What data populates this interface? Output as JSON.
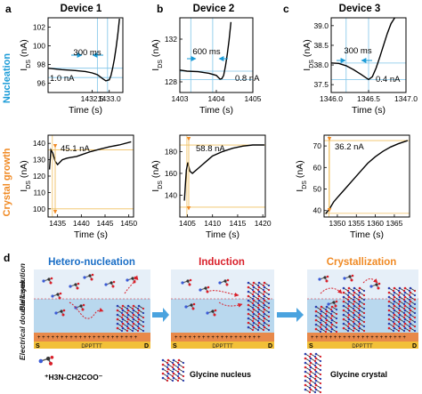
{
  "panels": {
    "a": "a",
    "b": "b",
    "c": "c",
    "d": "d",
    "titles": [
      "Device 1",
      "Device 2",
      "Device 3"
    ]
  },
  "row_labels": {
    "top": "Nucleation",
    "bottom": "Crystal growth"
  },
  "colors": {
    "nucleation": "#1a9bd7",
    "growth": "#f08a24",
    "stage_blue": "#1a6ec6",
    "stage_red": "#d9202a",
    "stage_orange": "#f08a24",
    "bulk": "#dfeaf5",
    "edl": "#b5d5ec",
    "substrate": "#e8894a",
    "electrode": "#f2c038"
  },
  "chart_data": [
    {
      "id": "a_top",
      "type": "line",
      "ylabel": "I_DS (nA)",
      "xlabel": "Time (s)",
      "xlim": [
        1431.2,
        1433.4
      ],
      "ylim": [
        95,
        103
      ],
      "xticks": [
        "1432.5",
        "1433.0"
      ],
      "yticks": [
        "96",
        "98",
        "100",
        "102"
      ],
      "annotations": [
        "1.0 nA",
        "300 ms"
      ],
      "x": [
        1431.2,
        1431.6,
        1432.0,
        1432.3,
        1432.5,
        1432.65,
        1432.8,
        1432.9,
        1433.0,
        1433.05,
        1433.1,
        1433.15,
        1433.2,
        1433.25,
        1433.3
      ],
      "y": [
        97.6,
        97.45,
        97.35,
        97.25,
        97.1,
        96.9,
        96.5,
        96.25,
        96.35,
        96.8,
        97.6,
        98.6,
        99.8,
        101.2,
        102.9
      ]
    },
    {
      "id": "b_top",
      "type": "line",
      "ylabel": "I_DS (nA)",
      "xlabel": "Time (s)",
      "xlim": [
        1403,
        1405
      ],
      "ylim": [
        127,
        134
      ],
      "xticks": [
        "1403",
        "1404",
        "1405"
      ],
      "yticks": [
        "128",
        "132"
      ],
      "annotations": [
        "600 ms",
        "0.8 nA"
      ],
      "x": [
        1403.0,
        1403.2,
        1403.5,
        1403.8,
        1404.0,
        1404.1,
        1404.15,
        1404.2,
        1404.25,
        1404.3,
        1404.35,
        1404.4
      ],
      "y": [
        129.1,
        129.0,
        128.95,
        128.8,
        128.6,
        128.25,
        128.3,
        128.6,
        129.5,
        130.6,
        131.9,
        133.6
      ]
    },
    {
      "id": "c_top",
      "type": "line",
      "ylabel": "I_DS (nA)",
      "xlabel": "Time (s)",
      "xlim": [
        1346,
        1347
      ],
      "ylim": [
        37.3,
        39.2
      ],
      "xticks": [
        "1346.0",
        "1346.5",
        "1347.0"
      ],
      "yticks": [
        "37.5",
        "38.0",
        "38.5",
        "39.0"
      ],
      "annotations": [
        "300 ms",
        "0.4 nA"
      ],
      "x": [
        1346.0,
        1346.1,
        1346.2,
        1346.3,
        1346.4,
        1346.5,
        1346.55,
        1346.6,
        1346.65,
        1346.7,
        1346.75,
        1346.8,
        1346.85
      ],
      "y": [
        38.05,
        38.04,
        37.98,
        37.88,
        37.76,
        37.63,
        37.7,
        37.92,
        38.2,
        38.5,
        38.8,
        39.05,
        39.2
      ]
    },
    {
      "id": "a_bot",
      "type": "line",
      "ylabel": "I_DS (nA)",
      "xlabel": "Time (s)",
      "xlim": [
        1433,
        1451
      ],
      "ylim": [
        95,
        145
      ],
      "xticks": [
        "1435",
        "1440",
        "1445",
        "1450"
      ],
      "yticks": [
        "100",
        "110",
        "120",
        "130",
        "140"
      ],
      "annotations": [
        "45.1 nA"
      ],
      "x": [
        1433.3,
        1433.6,
        1434.0,
        1434.5,
        1435.0,
        1436.0,
        1437.0,
        1438.0,
        1439.0,
        1440.0,
        1442.0,
        1444.0,
        1446.0,
        1448.0,
        1450.5
      ],
      "y": [
        124,
        136,
        134,
        129,
        127,
        130,
        131,
        131.5,
        132,
        133,
        135,
        136.5,
        138,
        139,
        141
      ]
    },
    {
      "id": "b_bot",
      "type": "line",
      "ylabel": "I_DS (nA)",
      "xlabel": "Time (s)",
      "xlim": [
        1403.5,
        1420.5
      ],
      "ylim": [
        120,
        195
      ],
      "xticks": [
        "1405",
        "1410",
        "1415",
        "1420"
      ],
      "yticks": [
        "140",
        "160",
        "180"
      ],
      "annotations": [
        "58.8 nA"
      ],
      "x": [
        1404.4,
        1404.8,
        1405.1,
        1405.5,
        1406.0,
        1407.0,
        1408.0,
        1409.0,
        1410.0,
        1412.0,
        1414.0,
        1416.0,
        1418.0,
        1420.3
      ],
      "y": [
        135,
        163,
        170,
        162,
        160,
        164,
        168,
        172,
        176,
        180,
        183,
        185,
        186,
        186
      ]
    },
    {
      "id": "c_bot",
      "type": "line",
      "ylabel": "I_DS (nA)",
      "xlabel": "Time (s)",
      "xlim": [
        1346.5,
        1369
      ],
      "ylim": [
        37,
        75
      ],
      "xticks": [
        "1350",
        "1355",
        "1360",
        "1365"
      ],
      "yticks": [
        "40",
        "50",
        "60",
        "70"
      ],
      "annotations": [
        "36.2 nA"
      ],
      "x": [
        1346.9,
        1348.0,
        1349.0,
        1350.0,
        1352.0,
        1354.0,
        1356.0,
        1358.0,
        1360.0,
        1362.0,
        1364.0,
        1366.0,
        1368.5
      ],
      "y": [
        38.5,
        41,
        44,
        46,
        50,
        54,
        58,
        62,
        65,
        67.5,
        69.5,
        71,
        72.5
      ]
    }
  ],
  "schematic": {
    "stages": [
      "Hetero-nucleation",
      "Induction",
      "Crystallization"
    ],
    "side_labels": [
      "Bulk solution",
      "Electrical double layer"
    ],
    "substrate_label": "DPPTTT",
    "source": "S",
    "drain": "D",
    "legend": {
      "molecule": "H3N-CH2COO",
      "nucleus": "Glycine nucleus",
      "crystal": "Glycine crystal"
    }
  }
}
